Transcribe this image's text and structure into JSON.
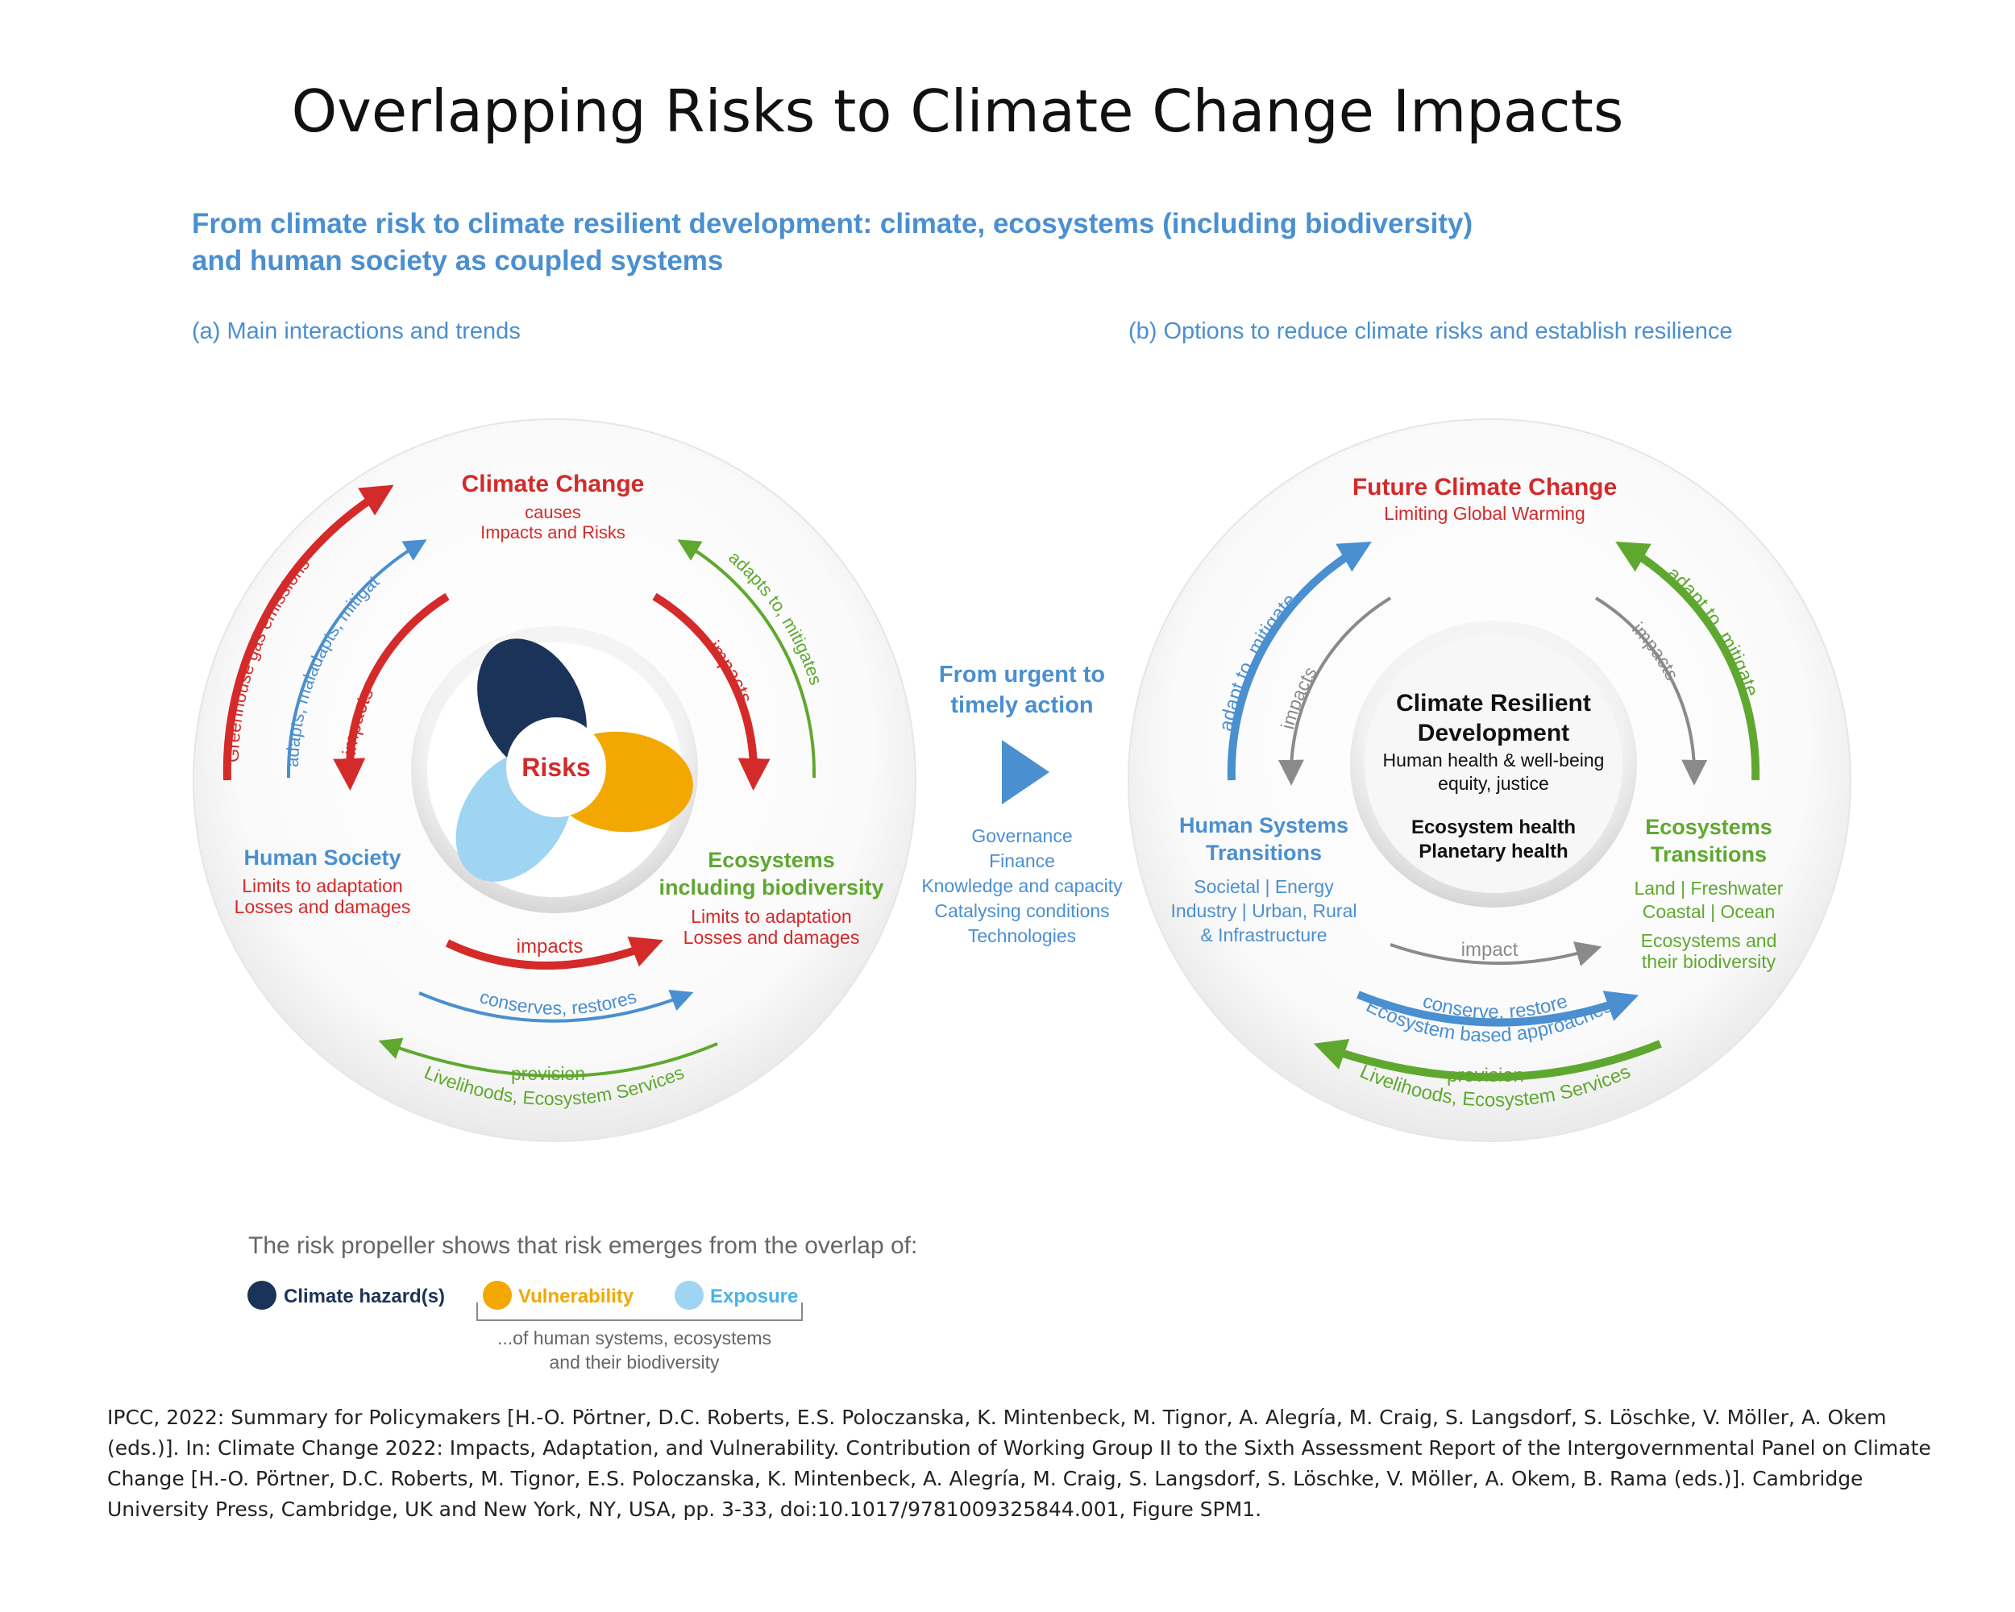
{
  "title": "Overlapping Risks to Climate Change Impacts",
  "heading": [
    "From climate risk to climate resilient development: climate, ecosystems (including biodiversity)",
    "and human society as coupled systems"
  ],
  "panel_a": {
    "label": "(a) Main interactions and trends",
    "climate_change": {
      "title": "Climate Change",
      "lines": [
        "causes",
        "Impacts and Risks"
      ]
    },
    "risks": "Risks",
    "human_society": {
      "title": "Human Society",
      "lines": [
        "Limits to adaptation",
        "Losses and damages"
      ]
    },
    "ecosystems": {
      "title": [
        "Ecosystems",
        "including biodiversity"
      ],
      "lines": [
        "Limits to adaptation",
        "Losses and damages"
      ]
    },
    "arrows": {
      "greenhouse": "Greenhouse gas emissions",
      "adapts_maladapts": "adapts, maladapts, mitigates",
      "impacts_left": "impacts",
      "impacts_right": "impacts",
      "adapts_mitigates": "adapts to, mitigates",
      "impacts_bottom": "impacts",
      "conserves": "conserves, restores",
      "provision": "provision",
      "livelihoods": "Livelihoods, Ecosystem Services"
    }
  },
  "middle": {
    "heading": [
      "From urgent to",
      "timely action"
    ],
    "list": [
      "Governance",
      "Finance",
      "Knowledge and capacity",
      "Catalysing conditions",
      "Technologies"
    ]
  },
  "panel_b": {
    "label": "(b) Options to reduce climate risks and establish resilience",
    "future": {
      "title": "Future Climate Change",
      "subtitle": "Limiting Global Warming"
    },
    "center": {
      "title": [
        "Climate Resilient",
        "Development"
      ],
      "lines": [
        "Human health & well-being",
        "equity, justice"
      ],
      "bold": [
        "Ecosystem health",
        "Planetary health"
      ]
    },
    "human": {
      "title": [
        "Human Systems",
        "Transitions"
      ],
      "lines": [
        "Societal | Energy",
        "Industry | Urban, Rural",
        "& Infrastructure"
      ]
    },
    "eco": {
      "title": [
        "Ecosystems",
        "Transitions"
      ],
      "lines": [
        "Land | Freshwater",
        "Coastal | Ocean",
        "Ecosystems and",
        "their biodiversity"
      ]
    },
    "arrows": {
      "adapt_left": "adapt to, mitigate",
      "impacts_left": "impacts",
      "impacts_right": "impacts",
      "adapt_right": "adapt to, mitigate",
      "impact_bottom": "impact",
      "conserve": "conserve, restore",
      "ebs": "Ecosystem based approaches",
      "provision": "provision",
      "livelihoods": "Livelihoods, Ecosystem Services"
    }
  },
  "legend": {
    "intro": "The risk propeller shows that risk emerges from the overlap of:",
    "hazard": "Climate hazard(s)",
    "vulnerability": "Vulnerability",
    "exposure": "Exposure",
    "note": [
      "...of human systems, ecosystems",
      "and their biodiversity"
    ]
  },
  "citation": "IPCC, 2022: Summary for Policymakers [H.-O. Pörtner, D.C. Roberts, E.S. Poloczanska, K. Mintenbeck, M. Tignor, A. Alegría, M. Craig, S. Langsdorf, S. Löschke, V. Möller, A. Okem (eds.)]. In: Climate Change 2022: Impacts, Adaptation, and Vulnerability. Contribution of Working Group II to the Sixth Assessment Report of the Intergovernmental Panel on Climate Change [H.-O. Pörtner, D.C. Roberts, M. Tignor, E.S. Poloczanska, K. Mintenbeck, A. Alegría, M. Craig, S. Langsdorf, S. Löschke, V. Möller, A. Okem, B. Rama (eds.)]. Cambridge University Press, Cambridge, UK and New York, NY, USA, pp. 3-33, doi:10.1017/9781009325844.001, Figure SPM1.",
  "colors": {
    "red": "#d42a2a",
    "blue": "#4a8fd0",
    "green": "#5fa830",
    "navy": "#1b3358",
    "orange": "#f2a800",
    "lightblue": "#9fd4f2",
    "gray": "#8a8a8a"
  }
}
